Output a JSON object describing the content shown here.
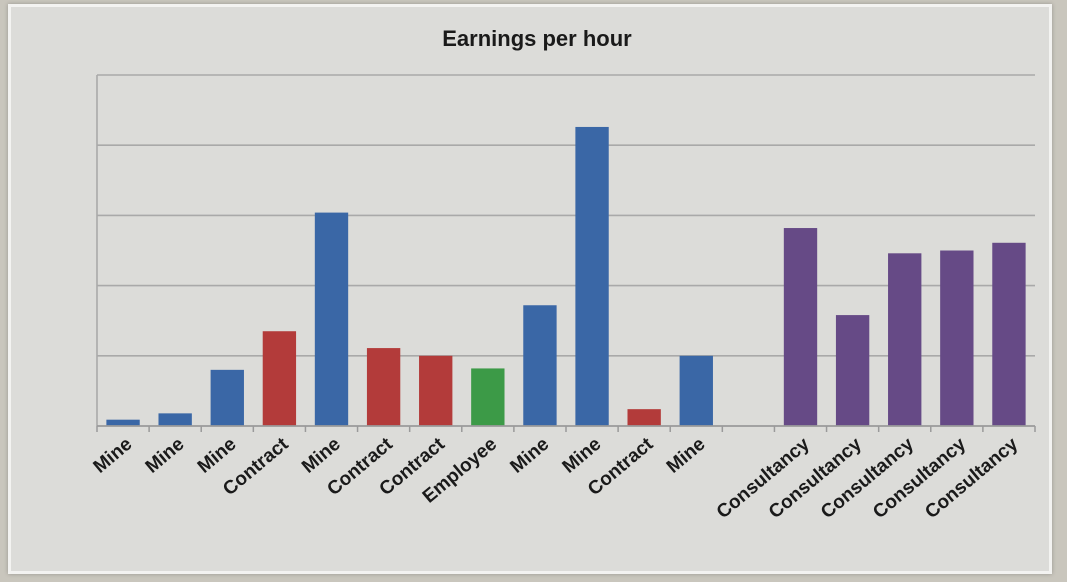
{
  "chart_data": {
    "type": "bar",
    "title": "Earnings per hour",
    "xlabel": "",
    "ylabel": "",
    "ylim": [
      0,
      5
    ],
    "grid": true,
    "categories": [
      "Mine",
      "Mine",
      "Mine",
      "Contract",
      "Mine",
      "Contract",
      "Contract",
      "Employee",
      "Mine",
      "Mine",
      "Contract",
      "Mine",
      "",
      "Consultancy",
      "Consultancy",
      "Consultancy",
      "Consultancy",
      "Consultancy"
    ],
    "values": [
      0.09,
      0.18,
      0.8,
      1.35,
      3.04,
      1.11,
      1.0,
      0.82,
      1.72,
      4.26,
      0.24,
      1.0,
      null,
      2.82,
      1.58,
      2.46,
      2.5,
      2.61
    ],
    "group": [
      "Mine",
      "Mine",
      "Mine",
      "Contract",
      "Mine",
      "Contract",
      "Contract",
      "Employee",
      "Mine",
      "Mine",
      "Contract",
      "Mine",
      "",
      "Consultancy",
      "Consultancy",
      "Consultancy",
      "Consultancy",
      "Consultancy"
    ],
    "colors": {
      "Mine": "#3a67a6",
      "Contract": "#b33b3a",
      "Employee": "#3c9a47",
      "Consultancy": "#664a86",
      "grid": "#a9a9a9",
      "plot_bg": "#dcdcd9"
    }
  }
}
